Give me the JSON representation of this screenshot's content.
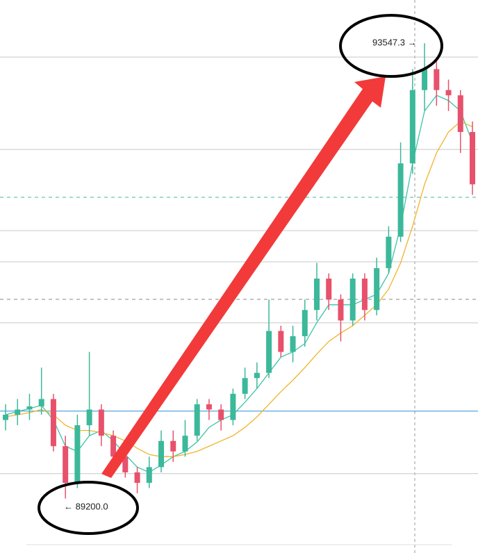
{
  "chart_data": {
    "type": "candlestick",
    "ylim": [
      88680,
      93960
    ],
    "open": [
      89950,
      90000,
      90050,
      90080,
      90150,
      89700,
      89350,
      89900,
      90050,
      89800,
      89600,
      89450,
      89350,
      89500,
      89750,
      89650,
      89800,
      90100,
      90050,
      89950,
      90200,
      90350,
      90400,
      90800,
      90600,
      90750,
      91000,
      91300,
      91100,
      90900,
      91300,
      91000,
      91400,
      91700,
      92400,
      93100,
      93300,
      93100,
      93050,
      92700
    ],
    "high": [
      90100,
      90150,
      90200,
      90450,
      90200,
      89800,
      90000,
      90600,
      90100,
      89850,
      89650,
      89500,
      89600,
      89850,
      89850,
      89950,
      90150,
      90150,
      90100,
      90250,
      90450,
      90500,
      91100,
      90850,
      90850,
      91100,
      91450,
      91350,
      91150,
      91350,
      91350,
      91500,
      91800,
      92600,
      93300,
      93547.3,
      93400,
      93200,
      93100,
      92800
    ],
    "low": [
      89850,
      89900,
      89950,
      90000,
      89650,
      89200,
      89300,
      89800,
      89700,
      89550,
      89400,
      89250,
      89300,
      89450,
      89550,
      89600,
      89750,
      89950,
      89850,
      89900,
      90150,
      90250,
      90350,
      90550,
      90500,
      90650,
      90900,
      91000,
      90700,
      90850,
      90900,
      90950,
      91350,
      91650,
      92300,
      92900,
      92950,
      92900,
      92500,
      92100
    ],
    "close": [
      90000,
      90050,
      90080,
      90150,
      89700,
      89350,
      89900,
      90050,
      89800,
      89600,
      89450,
      89350,
      89500,
      89750,
      89650,
      89800,
      90100,
      90050,
      89950,
      90200,
      90350,
      90400,
      90800,
      90600,
      90750,
      91000,
      91300,
      91100,
      90900,
      91300,
      91000,
      91400,
      91700,
      92400,
      93100,
      93300,
      93100,
      93050,
      92700,
      92200
    ],
    "up_color": "#3cb89a",
    "down_color": "#e8516b",
    "series": [
      {
        "color": "#3cc4a8",
        "values": [
          90000,
          90030,
          90060,
          90090,
          89950,
          89700,
          89650,
          89800,
          89850,
          89750,
          89620,
          89500,
          89450,
          89520,
          89600,
          89650,
          89740,
          89880,
          89950,
          90000,
          90120,
          90250,
          90400,
          90550,
          90600,
          90680,
          90880,
          91050,
          91050,
          91050,
          91100,
          91150,
          91350,
          91800,
          92400,
          92900,
          93050,
          93000,
          92900,
          92600
        ]
      },
      {
        "color": "#f0b429",
        "values": [
          89980,
          90000,
          90020,
          90050,
          90000,
          89900,
          89850,
          89850,
          89830,
          89800,
          89750,
          89680,
          89620,
          89600,
          89600,
          89620,
          89650,
          89700,
          89750,
          89800,
          89880,
          89980,
          90100,
          90220,
          90330,
          90450,
          90580,
          90700,
          90780,
          90850,
          90950,
          91050,
          91200,
          91450,
          91800,
          92200,
          92500,
          92700,
          92800,
          92750
        ]
      }
    ],
    "hlines": [
      93415,
      92533,
      91758,
      91460,
      90877,
      89438
    ],
    "dashed_lines": [
      {
        "value": 92076,
        "color": "#3cb89a"
      },
      {
        "value": 91102,
        "color": "#888888"
      }
    ],
    "price_line": {
      "value": 90035,
      "color": "#2b8fd6"
    },
    "annotations": [
      "93547.3 →",
      "← 89200.0"
    ]
  }
}
